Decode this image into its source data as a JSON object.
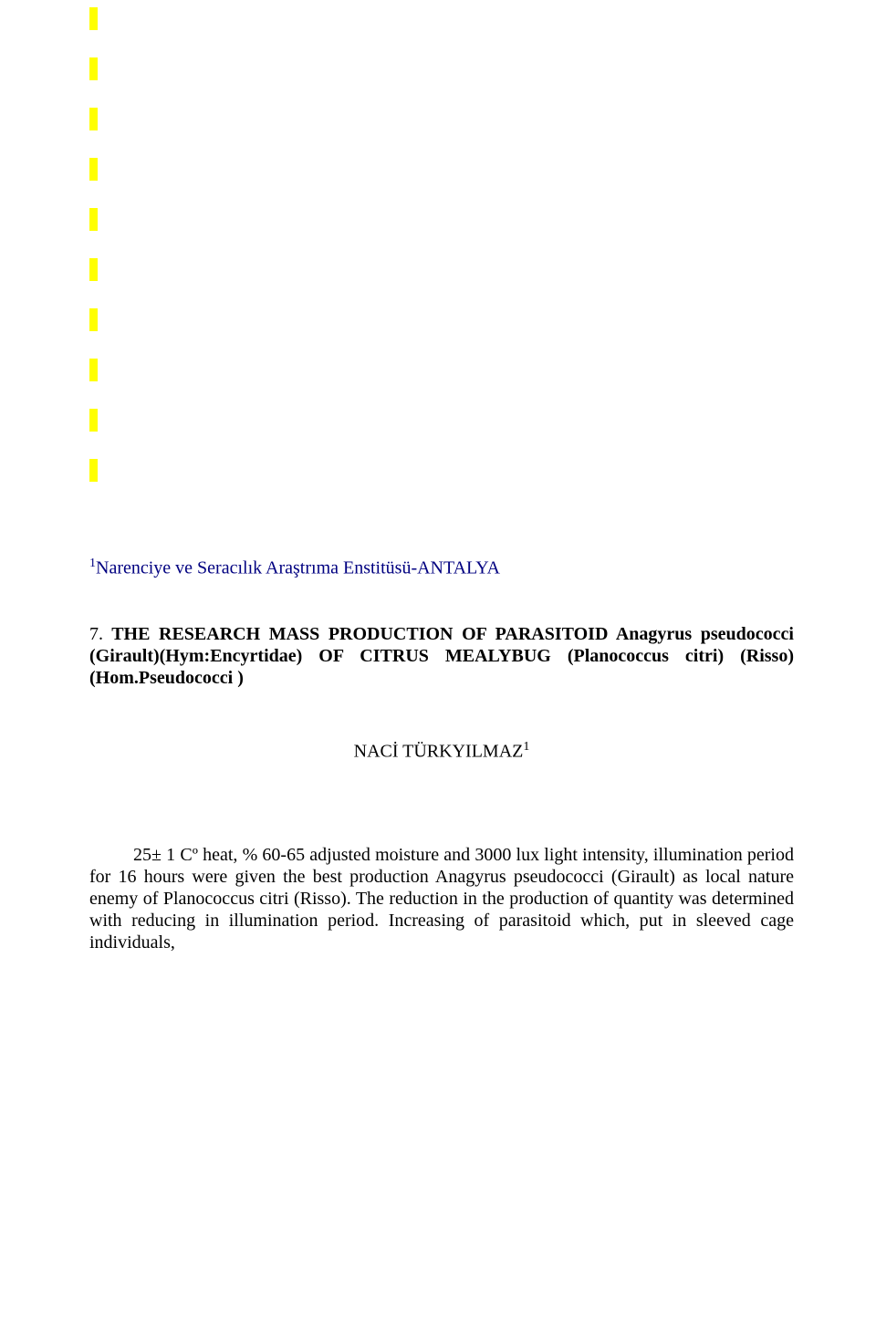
{
  "highlights": {
    "count": 10,
    "color": "#ffff00"
  },
  "affiliation": {
    "superscript": "1",
    "text": "Narenciye ve Seracılık Araştrıma Enstitüsü-ANTALYA",
    "color": "#000080",
    "fontsize": 20
  },
  "title": {
    "number": "7.",
    "text": "THE RESEARCH MASS PRODUCTION OF PARASITOID Anagyrus pseudococci (Girault)(Hym:Encyrtidae) OF CITRUS MEALYBUG (Planococcus citri) (Risso)(Hom.Pseudococci )",
    "fontsize": 20
  },
  "author": {
    "name": "NACİ TÜRKYILMAZ",
    "superscript": "1",
    "fontsize": 20
  },
  "abstract": {
    "text": "25± 1 Cº heat, % 60-65 adjusted moisture and 3000 lux light intensity, illumination period for 16 hours were given the best production Anagyrus pseudococci (Girault) as local nature enemy of Planococcus citri (Risso). The reduction in the production of quantity was determined with reducing in illumination period. Increasing of parasitoid which, put in sleeved cage individuals,",
    "fontsize": 20
  },
  "colors": {
    "background": "#ffffff",
    "highlight": "#ffff00",
    "affiliation_text": "#000080",
    "body_text": "#000000"
  }
}
